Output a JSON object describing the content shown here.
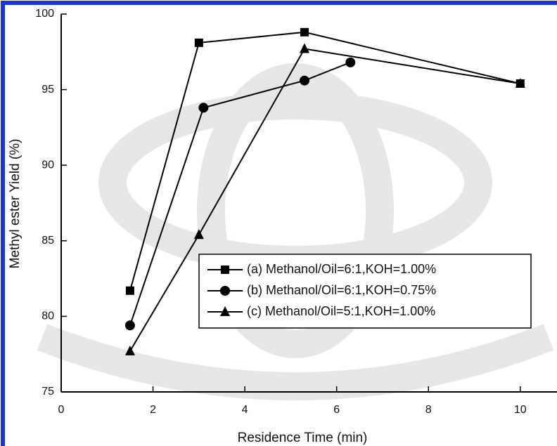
{
  "chart_data": {
    "type": "line",
    "xlabel": "Residence Time (min)",
    "ylabel": "Methyl ester Yield (%)",
    "xlim": [
      0,
      10.8
    ],
    "ylim": [
      75,
      100
    ],
    "xticks": [
      0,
      2,
      4,
      6,
      8,
      10
    ],
    "yticks": [
      75,
      80,
      85,
      90,
      95,
      100
    ],
    "series": [
      {
        "name": "(a) Methanol/Oil=6:1,KOH=1.00%",
        "color": "#000000",
        "marker": "square",
        "x": [
          1.5,
          3,
          5.3,
          10
        ],
        "values": [
          81.7,
          98.1,
          98.8,
          95.4
        ]
      },
      {
        "name": "(b) Methanol/Oil=6:1,KOH=0.75%",
        "color": "#000000",
        "marker": "circle",
        "x": [
          1.5,
          3.1,
          5.3,
          6.3
        ],
        "values": [
          79.4,
          93.8,
          95.6,
          96.8
        ]
      },
      {
        "name": "(c) Methanol/Oil=5:1,KOH=1.00%",
        "color": "#000000",
        "marker": "triangle",
        "x": [
          1.5,
          3,
          5.3,
          10
        ],
        "values": [
          77.7,
          85.4,
          97.7,
          95.4
        ]
      }
    ]
  }
}
